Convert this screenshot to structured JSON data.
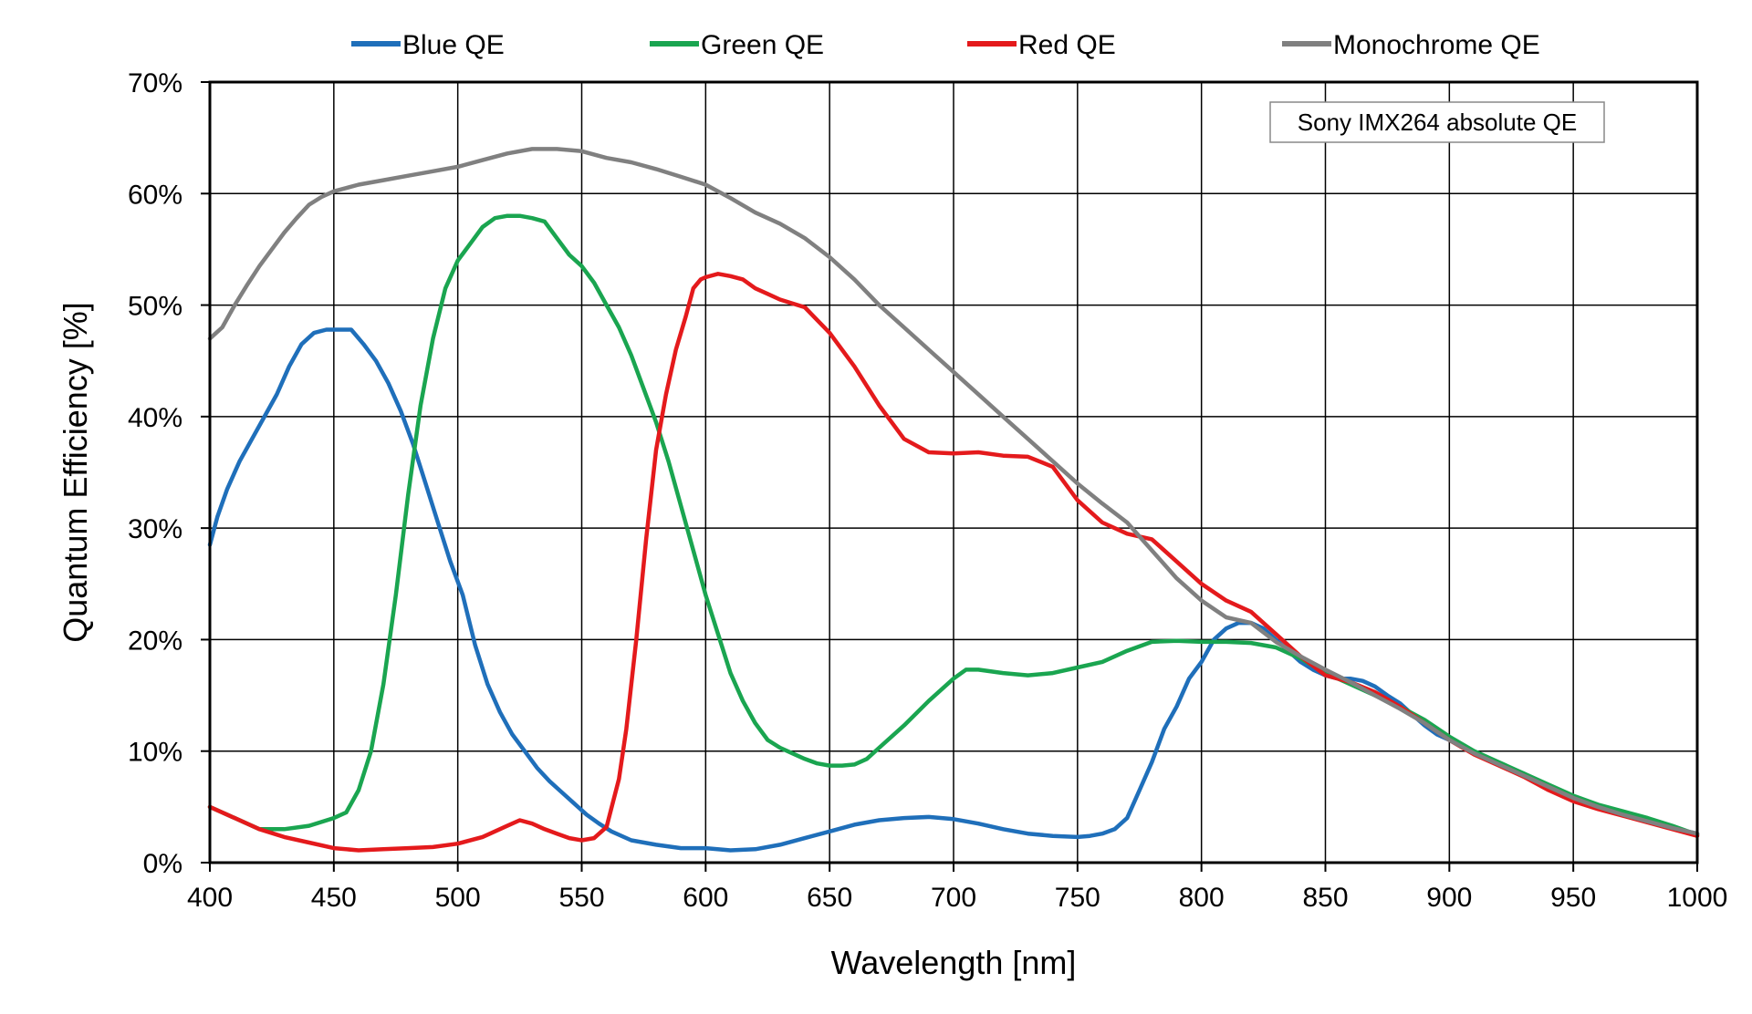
{
  "chart_data": {
    "type": "line",
    "title": "",
    "xlabel": "Wavelength [nm]",
    "ylabel": "Quantum Efficiency [%]",
    "xlim": [
      400,
      1000
    ],
    "ylim": [
      0,
      70
    ],
    "xticks": [
      400,
      450,
      500,
      550,
      600,
      650,
      700,
      750,
      800,
      850,
      900,
      950,
      1000
    ],
    "yticks": [
      0,
      10,
      20,
      30,
      40,
      50,
      60,
      70
    ],
    "ytick_labels": [
      "0%",
      "10%",
      "20%",
      "30%",
      "40%",
      "50%",
      "60%",
      "70%"
    ],
    "grid": true,
    "legend_position": "top",
    "annotation": "Sony IMX264 absolute QE",
    "series": [
      {
        "name": "Blue QE",
        "color": "#1f6fba",
        "x": [
          400,
          403,
          407,
          412,
          417,
          422,
          427,
          432,
          437,
          442,
          447,
          452,
          457,
          462,
          467,
          472,
          477,
          482,
          487,
          492,
          497,
          502,
          507,
          512,
          517,
          522,
          527,
          532,
          537,
          542,
          547,
          552,
          557,
          562,
          570,
          580,
          590,
          600,
          610,
          620,
          630,
          640,
          650,
          660,
          670,
          680,
          690,
          700,
          710,
          720,
          730,
          740,
          750,
          755,
          760,
          765,
          770,
          775,
          780,
          785,
          790,
          795,
          800,
          805,
          810,
          815,
          820,
          825,
          830,
          835,
          840,
          845,
          850,
          855,
          860,
          865,
          870,
          875,
          880,
          885,
          890,
          895,
          900,
          910,
          920,
          930,
          940,
          950,
          960,
          970,
          980,
          990,
          1000
        ],
        "values": [
          28.5,
          31,
          33.5,
          36,
          38,
          40,
          42,
          44.5,
          46.5,
          47.5,
          47.8,
          47.8,
          47.8,
          46.5,
          45,
          43,
          40.5,
          37.5,
          34,
          30.5,
          27,
          24,
          19.5,
          16,
          13.5,
          11.5,
          10,
          8.5,
          7.3,
          6.3,
          5.3,
          4.3,
          3.5,
          2.8,
          2,
          1.6,
          1.3,
          1.3,
          1.1,
          1.2,
          1.6,
          2.2,
          2.8,
          3.4,
          3.8,
          4,
          4.1,
          3.9,
          3.5,
          3,
          2.6,
          2.4,
          2.3,
          2.4,
          2.6,
          3,
          4,
          6.5,
          9,
          12,
          14,
          16.5,
          18,
          20,
          21,
          21.5,
          21.5,
          21,
          20,
          19,
          18,
          17.3,
          16.8,
          16.5,
          16.5,
          16.3,
          15.8,
          15,
          14.3,
          13.3,
          12.3,
          11.5,
          11,
          9.8,
          8.8,
          8,
          6.8,
          5.8,
          5,
          4.3,
          3.7,
          3.1,
          2.6
        ]
      },
      {
        "name": "Green QE",
        "color": "#1aa550",
        "x": [
          400,
          410,
          420,
          430,
          440,
          450,
          455,
          460,
          465,
          470,
          475,
          480,
          485,
          490,
          495,
          500,
          505,
          510,
          515,
          520,
          525,
          530,
          535,
          540,
          545,
          550,
          555,
          560,
          565,
          570,
          575,
          580,
          585,
          590,
          595,
          600,
          605,
          610,
          615,
          620,
          625,
          630,
          635,
          640,
          645,
          650,
          655,
          660,
          665,
          670,
          680,
          690,
          700,
          705,
          710,
          720,
          730,
          740,
          750,
          760,
          770,
          780,
          790,
          800,
          810,
          820,
          830,
          840,
          850,
          860,
          870,
          880,
          890,
          900,
          910,
          920,
          930,
          940,
          950,
          960,
          970,
          980,
          990,
          1000
        ],
        "values": [
          5,
          4,
          3,
          3,
          3.3,
          4,
          4.5,
          6.5,
          10,
          16,
          24,
          33,
          41,
          47,
          51.5,
          54,
          55.5,
          57,
          57.8,
          58,
          58,
          57.8,
          57.5,
          56,
          54.5,
          53.5,
          52,
          50,
          48,
          45.5,
          42.5,
          39.5,
          36,
          32,
          28,
          24,
          20.5,
          17,
          14.5,
          12.5,
          11,
          10.3,
          9.8,
          9.3,
          8.9,
          8.7,
          8.7,
          8.8,
          9.3,
          10.3,
          12.3,
          14.5,
          16.5,
          17.3,
          17.3,
          17,
          16.8,
          17,
          17.5,
          18,
          19,
          19.8,
          19.9,
          19.8,
          19.8,
          19.7,
          19.3,
          18.3,
          17,
          16,
          15,
          14,
          12.8,
          11.3,
          10,
          9,
          8,
          7,
          6,
          5.2,
          4.6,
          4,
          3.3,
          2.5
        ]
      },
      {
        "name": "Red QE",
        "color": "#e41a1c",
        "x": [
          400,
          410,
          420,
          430,
          440,
          450,
          460,
          470,
          480,
          490,
          500,
          510,
          520,
          525,
          530,
          535,
          540,
          545,
          550,
          555,
          560,
          565,
          568,
          572,
          576,
          580,
          584,
          588,
          592,
          595,
          598,
          600,
          605,
          610,
          615,
          620,
          625,
          630,
          640,
          650,
          660,
          670,
          680,
          690,
          700,
          710,
          720,
          730,
          740,
          750,
          760,
          770,
          780,
          790,
          800,
          810,
          820,
          830,
          840,
          850,
          860,
          870,
          880,
          890,
          900,
          910,
          920,
          930,
          940,
          950,
          960,
          970,
          980,
          990,
          1000
        ],
        "values": [
          5,
          4,
          3,
          2.3,
          1.8,
          1.3,
          1.1,
          1.2,
          1.3,
          1.4,
          1.7,
          2.3,
          3.3,
          3.8,
          3.5,
          3,
          2.6,
          2.2,
          2,
          2.2,
          3.2,
          7.5,
          12,
          20,
          29,
          37,
          42,
          46,
          49,
          51.5,
          52.3,
          52.5,
          52.8,
          52.6,
          52.3,
          51.5,
          51,
          50.5,
          49.8,
          47.5,
          44.5,
          41,
          38,
          36.8,
          36.7,
          36.8,
          36.5,
          36.4,
          35.5,
          32.5,
          30.5,
          29.5,
          29,
          27,
          25,
          23.5,
          22.5,
          20.5,
          18.5,
          16.8,
          16.2,
          15.3,
          14,
          12.5,
          11,
          9.7,
          8.7,
          7.7,
          6.5,
          5.5,
          4.8,
          4.2,
          3.6,
          3,
          2.4
        ]
      },
      {
        "name": "Monochrome QE",
        "color": "#808080",
        "x": [
          400,
          405,
          410,
          415,
          420,
          425,
          430,
          435,
          440,
          445,
          450,
          455,
          460,
          470,
          480,
          490,
          500,
          510,
          520,
          530,
          540,
          550,
          560,
          570,
          580,
          590,
          600,
          610,
          620,
          630,
          640,
          650,
          660,
          670,
          680,
          690,
          700,
          710,
          720,
          730,
          740,
          750,
          760,
          770,
          780,
          790,
          800,
          810,
          820,
          830,
          840,
          850,
          860,
          870,
          880,
          890,
          900,
          910,
          920,
          930,
          940,
          950,
          960,
          970,
          980,
          990,
          1000
        ],
        "values": [
          47,
          48,
          50,
          51.8,
          53.5,
          55,
          56.5,
          57.8,
          59,
          59.7,
          60.2,
          60.5,
          60.8,
          61.2,
          61.6,
          62,
          62.4,
          63,
          63.6,
          64,
          64,
          63.8,
          63.2,
          62.8,
          62.2,
          61.5,
          60.8,
          59.6,
          58.3,
          57.3,
          56,
          54.3,
          52.3,
          50,
          48,
          46,
          44,
          42,
          40,
          38,
          36,
          34,
          32.2,
          30.5,
          28,
          25.5,
          23.5,
          22,
          21.5,
          19.8,
          18.5,
          17.3,
          16.2,
          15,
          13.8,
          12.5,
          11,
          9.8,
          8.8,
          7.8,
          6.8,
          5.8,
          5,
          4.3,
          3.7,
          3.1,
          2.6
        ]
      }
    ]
  }
}
